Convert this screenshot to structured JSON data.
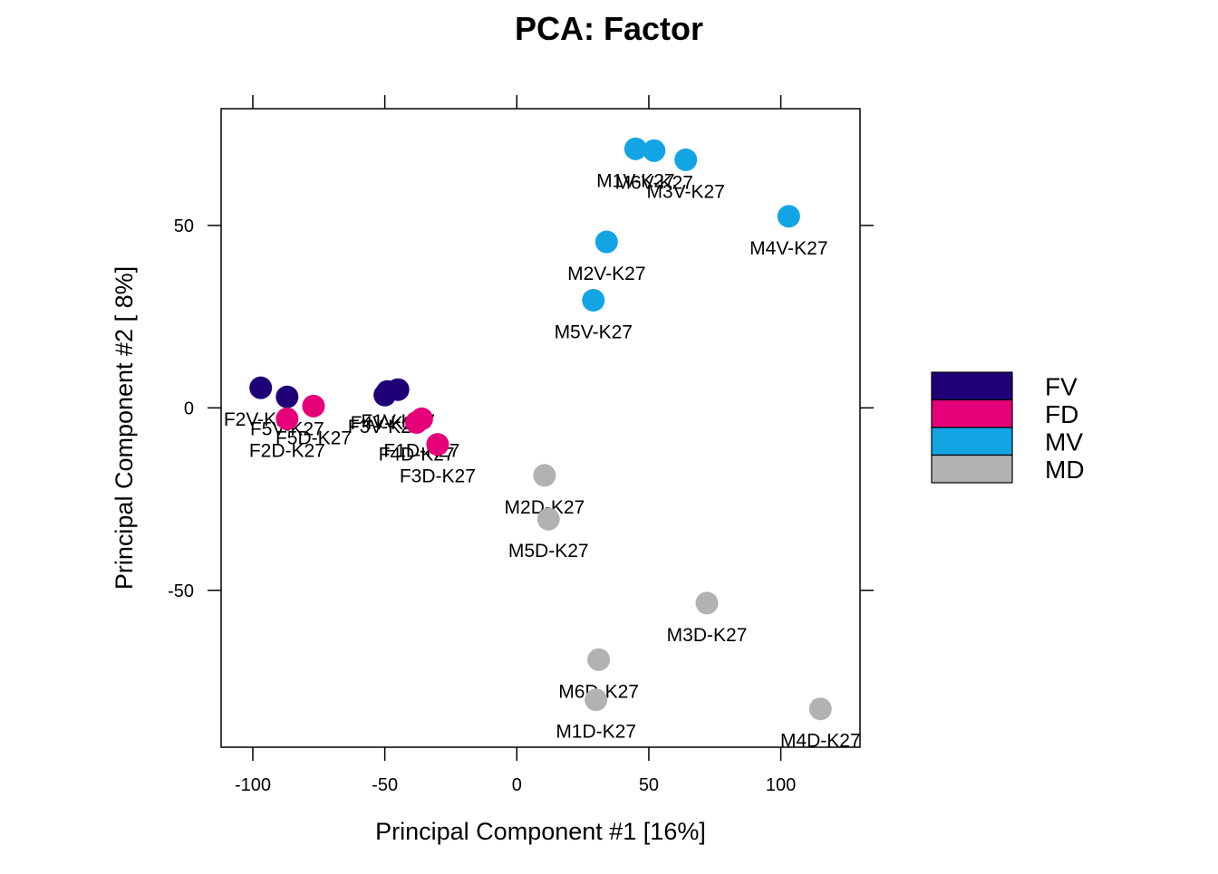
{
  "chart_data": {
    "type": "scatter",
    "title": "PCA: Factor",
    "xlabel": "Principal Component #1 [16%]",
    "ylabel": "Principal Component #2 [ 8%]",
    "xlim": [
      -112,
      130
    ],
    "ylim": [
      -93,
      82
    ],
    "xticks": [
      -100,
      -50,
      0,
      50,
      100
    ],
    "yticks": [
      -50,
      0,
      50
    ],
    "legend_placement": "right",
    "grid": false,
    "series": [
      {
        "name": "FV",
        "color": "#1f0077",
        "points": [
          {
            "x": -97,
            "y": 5.5,
            "label": "F2V-K27"
          },
          {
            "x": -87,
            "y": 3,
            "label": "F5V-K27"
          },
          {
            "x": -50,
            "y": 3.5,
            "label": "F3V-K27"
          },
          {
            "x": -45,
            "y": 5,
            "label": "F1V-K27"
          },
          {
            "x": -49,
            "y": 4.5,
            "label": "F4V-K27"
          }
        ]
      },
      {
        "name": "FD",
        "color": "#e5007a",
        "points": [
          {
            "x": -87,
            "y": -3,
            "label": "F2D-K27"
          },
          {
            "x": -77,
            "y": 0.5,
            "label": "F5D-K27"
          },
          {
            "x": -38,
            "y": -4,
            "label": "F4D-K27"
          },
          {
            "x": -36,
            "y": -3,
            "label": "F1D-K27"
          },
          {
            "x": -30,
            "y": -10,
            "label": "F3D-K27"
          }
        ]
      },
      {
        "name": "MV",
        "color": "#13a4e4",
        "points": [
          {
            "x": 45,
            "y": 71,
            "label": "M1V-K27"
          },
          {
            "x": 52,
            "y": 70.5,
            "label": "M6V-K27"
          },
          {
            "x": 64,
            "y": 68,
            "label": "M3V-K27"
          },
          {
            "x": 103,
            "y": 52.5,
            "label": "M4V-K27"
          },
          {
            "x": 34,
            "y": 45.5,
            "label": "M2V-K27"
          },
          {
            "x": 29,
            "y": 29.5,
            "label": "M5V-K27"
          }
        ]
      },
      {
        "name": "MD",
        "color": "#b2b2b2",
        "points": [
          {
            "x": 10.5,
            "y": -18.5,
            "label": "M2D-K27"
          },
          {
            "x": 12,
            "y": -30.5,
            "label": "M5D-K27"
          },
          {
            "x": 72,
            "y": -53.5,
            "label": "M3D-K27"
          },
          {
            "x": 31,
            "y": -69,
            "label": "M6D-K27"
          },
          {
            "x": 30,
            "y": -80,
            "label": "M1D-K27"
          },
          {
            "x": 115,
            "y": -82.5,
            "label": "M4D-K27"
          }
        ]
      }
    ]
  }
}
